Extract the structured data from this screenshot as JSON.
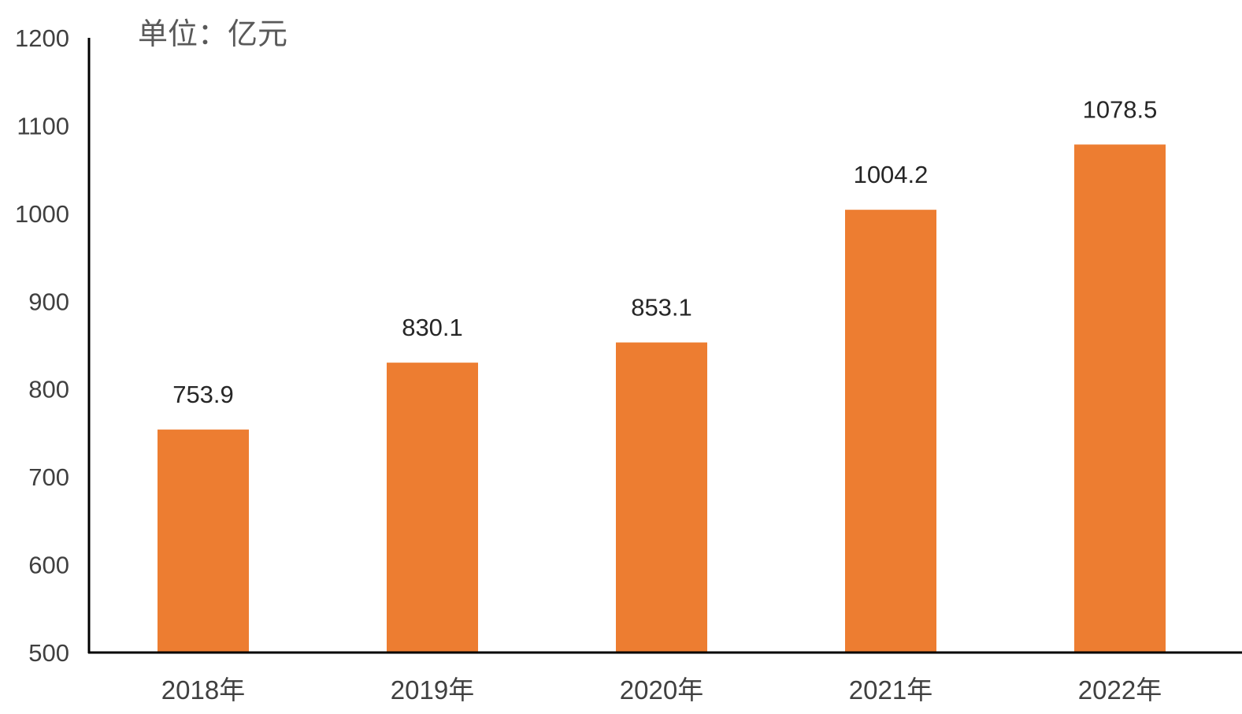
{
  "chart_data": {
    "type": "bar",
    "unit_label": "单位：亿元",
    "categories": [
      "2018年",
      "2019年",
      "2020年",
      "2021年",
      "2022年"
    ],
    "values": [
      753.9,
      830.1,
      853.1,
      1004.2,
      1078.5
    ],
    "data_labels": [
      "753.9",
      "830.1",
      "853.1",
      "1004.2",
      "1078.5"
    ],
    "ylim": [
      500,
      1200
    ],
    "yticks": [
      500,
      600,
      700,
      800,
      900,
      1000,
      1100,
      1200
    ],
    "ytick_labels": [
      "500",
      "600",
      "700",
      "800",
      "900",
      "1000",
      "1100",
      "1200"
    ],
    "grid": false,
    "legend": "none",
    "bar_color": "#ED7D31",
    "axis_color": "#000000"
  }
}
